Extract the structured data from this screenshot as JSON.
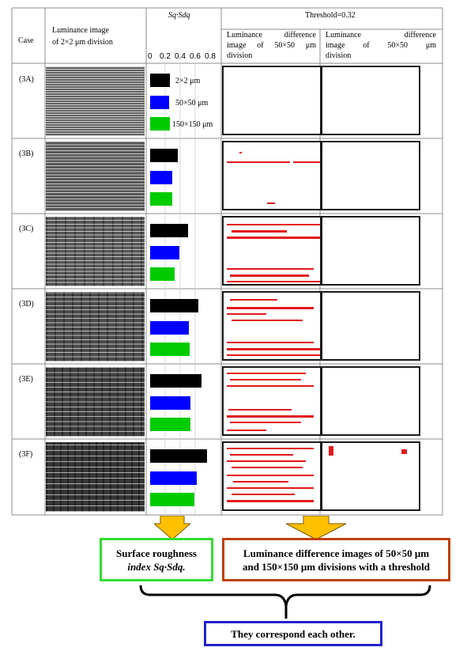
{
  "header": {
    "case": "Case",
    "luminance_line1": "Luminance image",
    "luminance_line2": "of 2×2 μm division",
    "sqsdq": "Sq·Sdq",
    "threshold": "Threshold=0.32",
    "col3": [
      "Luminance difference",
      "image of 50×50 μm",
      "division"
    ],
    "col4": [
      "Luminance difference",
      "image of 50×50 μm",
      "division"
    ]
  },
  "axis_ticks": [
    "0",
    "0.2",
    "0.4",
    "0.6",
    "0.8"
  ],
  "legend": [
    "2×2 μm",
    "50×50 μm",
    "150×150 μm"
  ],
  "colors": {
    "s2": "#000000",
    "s50": "#0000ff",
    "s150": "#00cc00",
    "diff": "#e3191c",
    "arrow": "#ffc000",
    "green_box": "#33dd33",
    "red_box": "#c04000",
    "blue_box": "#2222cc"
  },
  "chart_data": {
    "type": "bar",
    "title": "Sq·Sdq",
    "xlim": [
      0,
      0.8
    ],
    "categories": [
      "(3A)",
      "(3B)",
      "(3C)",
      "(3D)",
      "(3E)",
      "(3F)"
    ],
    "series": [
      {
        "name": "2×2 μm",
        "values": [
          0.26,
          0.37,
          0.5,
          0.64,
          0.68,
          0.76
        ]
      },
      {
        "name": "50×50 μm",
        "values": [
          0.25,
          0.29,
          0.39,
          0.52,
          0.54,
          0.62
        ]
      },
      {
        "name": "150×150 μm",
        "values": [
          0.26,
          0.29,
          0.33,
          0.53,
          0.54,
          0.59
        ]
      }
    ]
  },
  "callouts": {
    "green": [
      "Surface roughness",
      "index Sq·Sdq."
    ],
    "red": [
      "Luminance difference images of 50×50 μm",
      "and 150×150 μm divisions with a threshold"
    ],
    "blue": "They correspond each other."
  }
}
